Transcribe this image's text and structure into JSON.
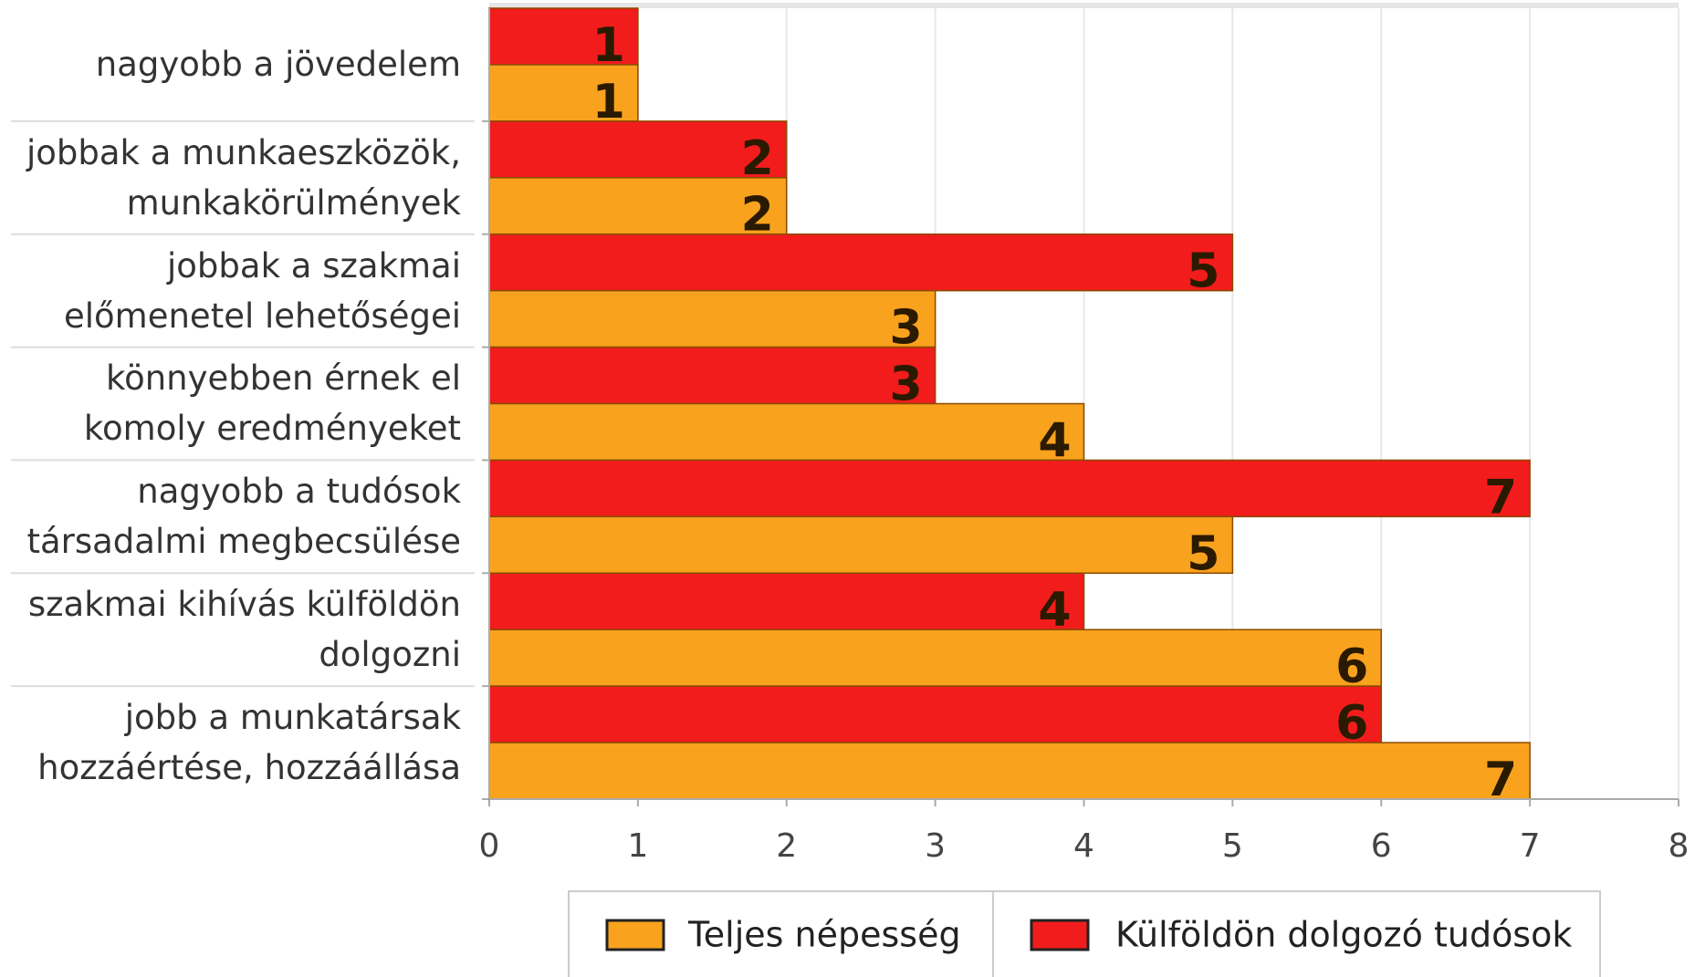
{
  "chart_data": {
    "type": "bar",
    "orientation": "horizontal",
    "categories": [
      "nagyobb a jövedelem",
      "jobbak a munkaeszközök,\nmunkakörülmények",
      "jobbak a szakmai\nelőmenetel lehetőségei",
      "könnyebben érnek el\nkomoly eredményeket",
      "nagyobb a tudósok\ntársadalmi megbecsülése",
      "szakmai kihívás külföldön\ndolgozni",
      "jobb a munkatársak\nhozzáértése, hozzáállása"
    ],
    "series": [
      {
        "name": "Teljes népesség",
        "color": "#f9a21e",
        "values": [
          1,
          2,
          3,
          4,
          5,
          6,
          7
        ]
      },
      {
        "name": "Külföldön dolgozó tudósok",
        "color": "#f21c1c",
        "values": [
          1,
          2,
          5,
          3,
          7,
          4,
          6
        ]
      }
    ],
    "xlim": [
      0,
      8
    ],
    "xticks": [
      0,
      1,
      2,
      3,
      4,
      5,
      6,
      7,
      8
    ],
    "grid": true
  }
}
